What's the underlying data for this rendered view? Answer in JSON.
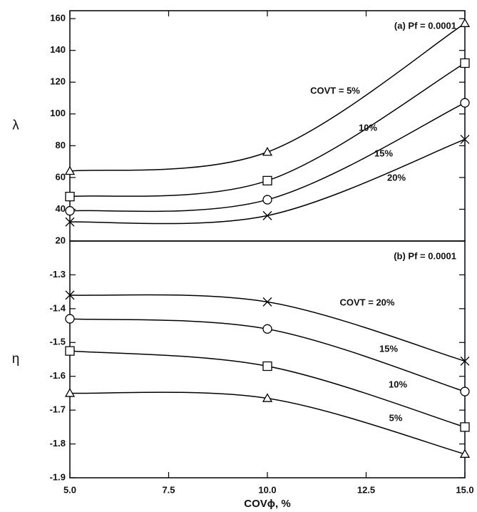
{
  "chart_data": [
    {
      "type": "line",
      "annotation": "(a) Pf = 0.0001",
      "y_label": "λ",
      "x": [
        5,
        10,
        15
      ],
      "xlim": [
        5,
        15
      ],
      "ylim": [
        20,
        165
      ],
      "yticks": [
        20,
        40,
        60,
        80,
        100,
        120,
        140,
        160
      ],
      "series": [
        {
          "name": "COVT = 5%",
          "color": "#000000",
          "marker": "triangle",
          "values": [
            64,
            76,
            157
          ]
        },
        {
          "name": "10%",
          "color": "#000000",
          "marker": "square",
          "values": [
            48,
            58,
            132
          ]
        },
        {
          "name": "15%",
          "color": "#000000",
          "marker": "circle",
          "values": [
            39,
            46,
            107
          ]
        },
        {
          "name": "20%",
          "color": "#000000",
          "marker": "x",
          "values": [
            32,
            36,
            84
          ]
        }
      ]
    },
    {
      "type": "line",
      "annotation": "(b) Pf = 0.0001",
      "y_label": "η",
      "x_label": "COVϕ, %",
      "x": [
        5,
        10,
        15
      ],
      "xlim": [
        5,
        15
      ],
      "ylim": [
        -1.9,
        -1.2
      ],
      "xticks": [
        {
          "value": 5,
          "label": "5.0"
        },
        {
          "value": 7.5,
          "label": "7.5"
        },
        {
          "value": 10,
          "label": "10.0"
        },
        {
          "value": 12.5,
          "label": "12.5"
        },
        {
          "value": 15,
          "label": "15.0"
        }
      ],
      "yticks": [
        -1.9,
        -1.8,
        -1.7,
        -1.6,
        -1.5,
        -1.4,
        -1.3
      ],
      "series": [
        {
          "name": "COVT = 20%",
          "color": "#000000",
          "marker": "x",
          "values": [
            -1.36,
            -1.38,
            -1.555
          ]
        },
        {
          "name": "15%",
          "color": "#000000",
          "marker": "circle",
          "values": [
            -1.43,
            -1.46,
            -1.645
          ]
        },
        {
          "name": "10%",
          "color": "#000000",
          "marker": "square",
          "values": [
            -1.525,
            -1.57,
            -1.75
          ]
        },
        {
          "name": "5%",
          "color": "#000000",
          "marker": "triangle",
          "values": [
            -1.65,
            -1.665,
            -1.83
          ]
        }
      ]
    }
  ]
}
